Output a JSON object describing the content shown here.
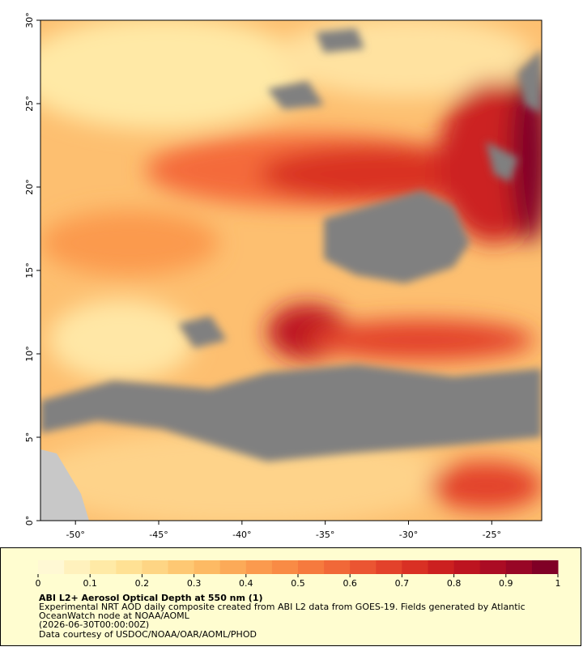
{
  "chart_data": {
    "type": "map",
    "xlim": [
      -52.1,
      -22
    ],
    "ylim": [
      0,
      30
    ],
    "xticks": [
      {
        "value": -50,
        "label": "-50°"
      },
      {
        "value": -45,
        "label": "-45°"
      },
      {
        "value": -40,
        "label": "-40°"
      },
      {
        "value": -35,
        "label": "-35°"
      },
      {
        "value": -30,
        "label": "-30°"
      },
      {
        "value": -25,
        "label": "-25°"
      }
    ],
    "yticks": [
      {
        "value": 0,
        "label": "0°"
      },
      {
        "value": 5,
        "label": "5°"
      },
      {
        "value": 10,
        "label": "10°"
      },
      {
        "value": 15,
        "label": "15°"
      },
      {
        "value": 20,
        "label": "20°"
      },
      {
        "value": 25,
        "label": "25°"
      },
      {
        "value": 30,
        "label": "30°"
      }
    ],
    "colorbar": {
      "clim": [
        0,
        1
      ],
      "cticks": [
        0,
        0.1,
        0.2,
        0.3,
        0.4,
        0.5,
        0.6,
        0.7,
        0.8,
        0.9,
        1
      ],
      "colors": [
        "#fff8d4",
        "#fff1bd",
        "#ffeaa6",
        "#ffe194",
        "#fed584",
        "#fec873",
        "#fdba64",
        "#fcaa58",
        "#fb9a4e",
        "#f98b45",
        "#f67a3e",
        "#f16838",
        "#eb5532",
        "#e3422b",
        "#d93024",
        "#cc2020",
        "#bd1420",
        "#ab0c24",
        "#980626",
        "#800026"
      ]
    }
  },
  "caption": {
    "title": "ABI L2+ Aerosol Optical Depth at 550 nm (1)",
    "lines": [
      "Experimental NRT AOD daily composite created from ABI L2 data from GOES-19. Fields generated by Atlantic",
      "OceanWatch node at NOAA/AOML",
      "(2026-06-30T00:00:00Z)",
      "Data courtesy of USDOC/NOAA/OAR/AOML/PHOD"
    ]
  }
}
